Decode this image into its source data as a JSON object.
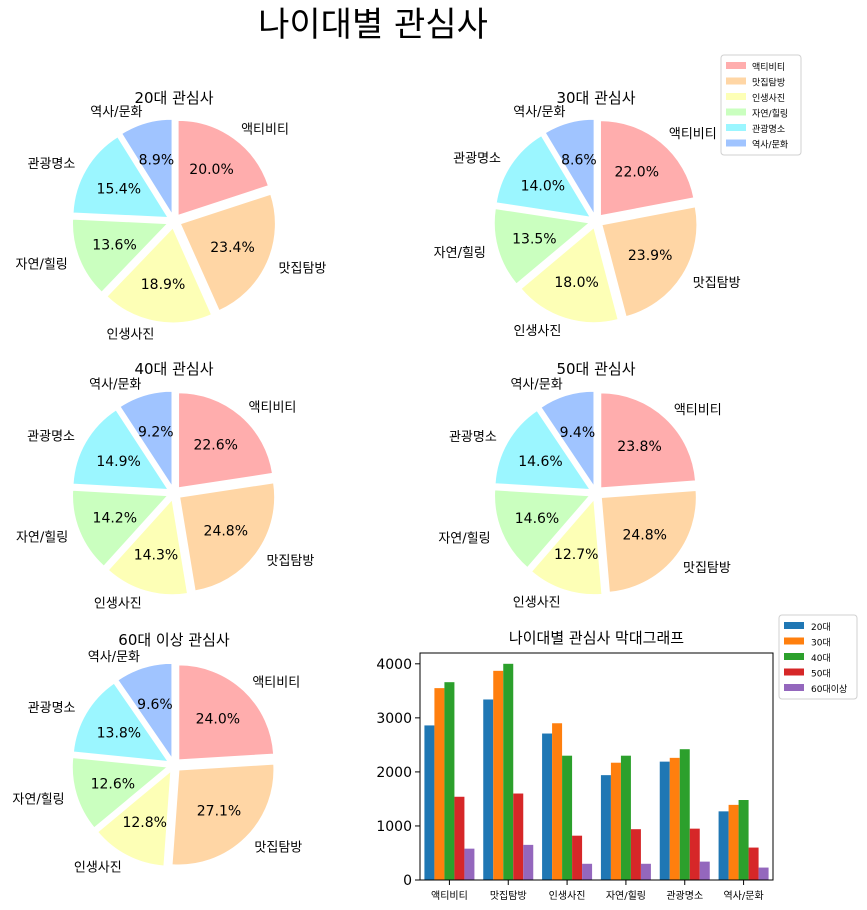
{
  "title": "나이대별 관심사",
  "colors": [
    "#ffadad",
    "#ffd6a5",
    "#fdffb6",
    "#caffbf",
    "#9bf6ff",
    "#a0c4ff"
  ],
  "bar_colors": [
    "#1f77b4",
    "#ff7f0e",
    "#2ca02c",
    "#d62728",
    "#9467bd"
  ],
  "chart_data": [
    {
      "type": "pie",
      "title": "20대 관심사",
      "labels": [
        "액티비티",
        "맛집탐방",
        "인생사진",
        "자연/힐링",
        "관광명소",
        "역사/문화"
      ],
      "values": [
        20.0,
        23.4,
        18.9,
        13.6,
        15.4,
        8.9
      ],
      "value_labels": [
        "20.0%",
        "23.4%",
        "18.9%",
        "13.6%",
        "15.4%",
        "8.9%"
      ]
    },
    {
      "type": "pie",
      "title": "30대 관심사",
      "labels": [
        "액티비티",
        "맛집탐방",
        "인생사진",
        "자연/힐링",
        "관광명소",
        "역사/문화"
      ],
      "values": [
        22.0,
        23.9,
        18.0,
        13.5,
        14.0,
        8.6
      ],
      "value_labels": [
        "22.0%",
        "23.9%",
        "18.0%",
        "13.5%",
        "14.0%",
        "8.6%"
      ],
      "legend": {
        "placement": "upper-right",
        "entries": [
          "액티비티",
          "맛집탐방",
          "인생사진",
          "자연/힐링",
          "관광명소",
          "역사/문화"
        ]
      }
    },
    {
      "type": "pie",
      "title": "40대 관심사",
      "labels": [
        "액티비티",
        "맛집탐방",
        "인생사진",
        "자연/힐링",
        "관광명소",
        "역사/문화"
      ],
      "values": [
        22.6,
        24.8,
        14.3,
        14.2,
        14.9,
        9.2
      ],
      "value_labels": [
        "22.6%",
        "24.8%",
        "14.3%",
        "14.2%",
        "14.9%",
        "9.2%"
      ]
    },
    {
      "type": "pie",
      "title": "50대 관심사",
      "labels": [
        "액티비티",
        "맛집탐방",
        "인생사진",
        "자연/힐링",
        "관광명소",
        "역사/문화"
      ],
      "values": [
        23.8,
        24.8,
        12.7,
        14.6,
        14.6,
        9.4
      ],
      "value_labels": [
        "23.8%",
        "24.8%",
        "12.7%",
        "14.6%",
        "14.6%",
        "9.4%"
      ]
    },
    {
      "type": "pie",
      "title": "60대 이상 관심사",
      "labels": [
        "액티비티",
        "맛집탐방",
        "인생사진",
        "자연/힐링",
        "관광명소",
        "역사/문화"
      ],
      "values": [
        24.0,
        27.1,
        12.8,
        12.6,
        13.8,
        9.6
      ],
      "value_labels": [
        "24.0%",
        "27.1%",
        "12.8%",
        "12.6%",
        "13.8%",
        "9.6%"
      ]
    },
    {
      "type": "bar",
      "title": "나이대별 관심사 막대그래프",
      "categories": [
        "액티비티",
        "맛집탐방",
        "인생사진",
        "자연/힐링",
        "관광명소",
        "역사/문화"
      ],
      "series": [
        {
          "name": "20대",
          "values": [
            2860,
            3340,
            2710,
            1940,
            2190,
            1270
          ]
        },
        {
          "name": "30대",
          "values": [
            3550,
            3870,
            2900,
            2170,
            2260,
            1390
          ]
        },
        {
          "name": "40대",
          "values": [
            3660,
            4000,
            2300,
            2300,
            2420,
            1480
          ]
        },
        {
          "name": "50대",
          "values": [
            1540,
            1600,
            820,
            940,
            950,
            600
          ]
        },
        {
          "name": "60대이상",
          "values": [
            580,
            650,
            300,
            300,
            340,
            230
          ]
        }
      ],
      "ylim": [
        0,
        4200
      ],
      "yticks": [
        0,
        1000,
        2000,
        3000,
        4000
      ],
      "legend": {
        "placement": "outside-upper-right"
      }
    }
  ]
}
